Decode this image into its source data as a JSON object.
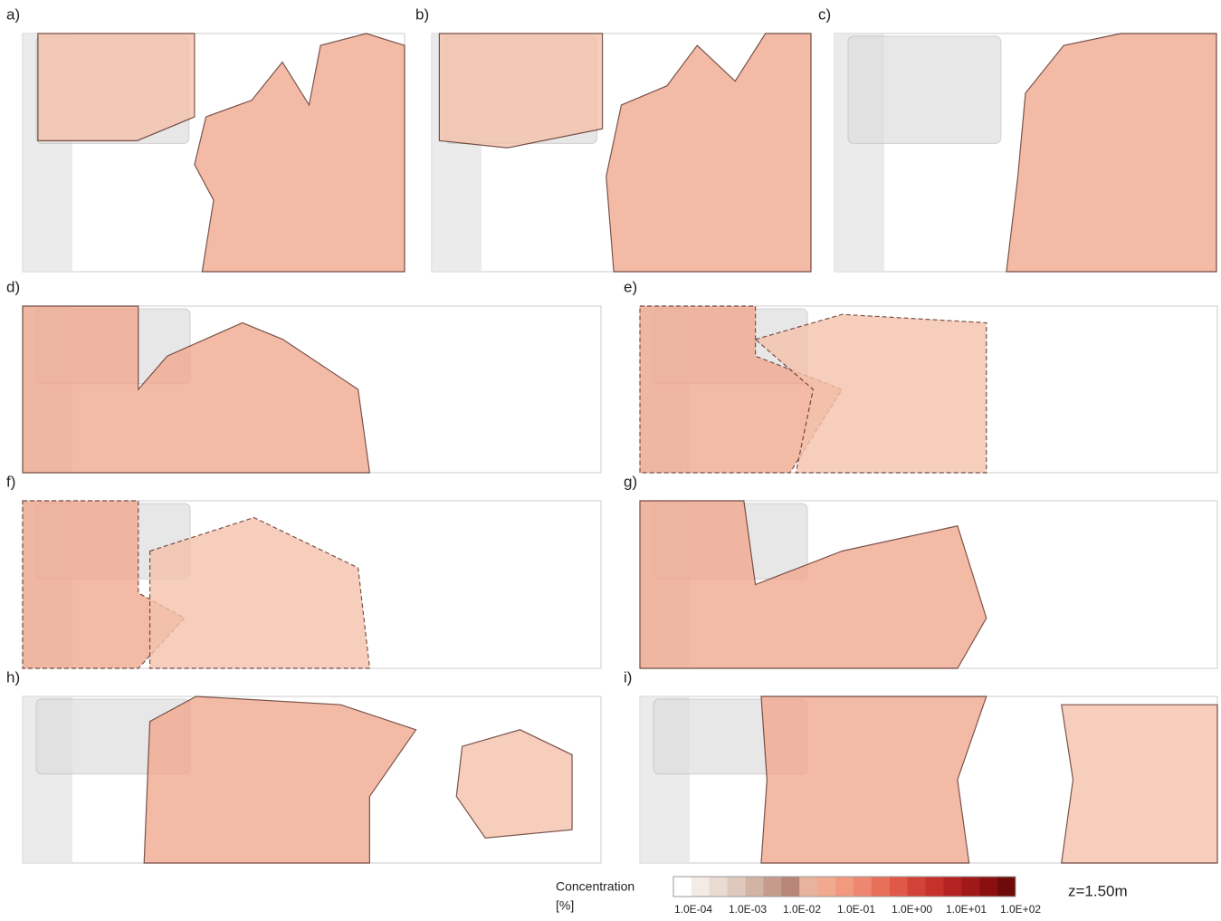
{
  "panels": [
    {
      "label": "a)"
    },
    {
      "label": "b)"
    },
    {
      "label": "c)"
    },
    {
      "label": "d)"
    },
    {
      "label": "e)"
    },
    {
      "label": "f)"
    },
    {
      "label": "g)"
    },
    {
      "label": "h)"
    },
    {
      "label": "i)"
    }
  ],
  "legend": {
    "title": "Concentration",
    "unit": "[%]",
    "ticks": [
      "1.0E-04",
      "1.0E-03",
      "1.0E-02",
      "1.0E-01",
      "1.0E+00",
      "1.0E+01",
      "1.0E+02"
    ],
    "colors": [
      "#ffffff",
      "#f3ebe6",
      "#eadbd2",
      "#dfc8bc",
      "#d2b3a6",
      "#c49b8d",
      "#b78678",
      "#e8b39d",
      "#f1a98f",
      "#f29a80",
      "#ee8770",
      "#e8705b",
      "#e05848",
      "#d34238",
      "#c5312b",
      "#b42222",
      "#a01818",
      "#8a1010",
      "#6e0a0a"
    ]
  },
  "annotation": "z=1.50m"
}
